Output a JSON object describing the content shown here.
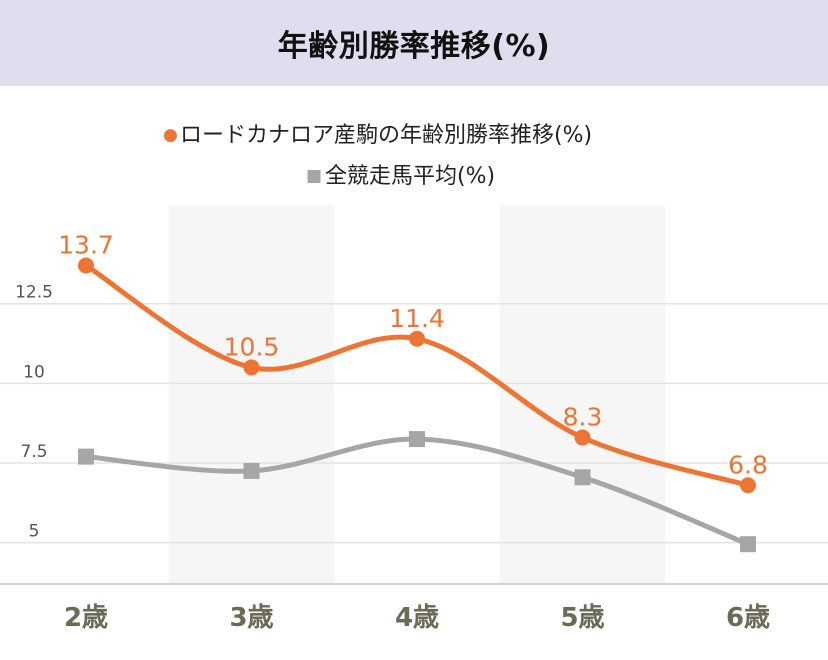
{
  "header": {
    "title": "年齢別勝率推移(%)"
  },
  "chart_data": {
    "type": "line",
    "title": "年齢別勝率推移(%)",
    "categories": [
      "2歳",
      "3歳",
      "4歳",
      "5歳",
      "6歳"
    ],
    "series": [
      {
        "name": "ロードカナロア産駒の年齢別勝率推移(%)",
        "marker_glyph": "●",
        "values": [
          13.7,
          10.5,
          11.4,
          8.3,
          6.8
        ],
        "color": "#ed7433",
        "marker": "circle",
        "data_labels": [
          "13.7",
          "10.5",
          "11.4",
          "8.3",
          "6.8"
        ]
      },
      {
        "name": "全競走馬平均(%)",
        "marker_glyph": "■",
        "values": [
          7.7,
          7.25,
          8.25,
          7.05,
          4.95
        ],
        "color": "#a6a6a6",
        "marker": "square"
      }
    ],
    "y_ticks": [
      5,
      7.5,
      10,
      12.5
    ],
    "y_tick_labels": [
      "5",
      "7.5",
      "10",
      "12.5"
    ],
    "ylim": [
      3.7,
      15.6
    ],
    "grid": true,
    "legend_position": "top-center",
    "shaded_bands": [
      1,
      3
    ],
    "colors": {
      "grid": "#e3e3e3",
      "band": "#f6f6f6",
      "axis": "#cfd1d8",
      "tick_label": "#555555",
      "category_label": "#6a6a55",
      "header_bg": "#dfdeee"
    }
  }
}
